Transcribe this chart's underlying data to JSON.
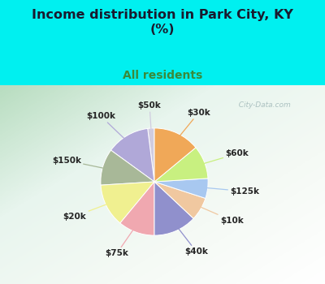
{
  "title": "Income distribution in Park City, KY\n(%)",
  "subtitle": "All residents",
  "labels": [
    "$50k",
    "$100k",
    "$150k",
    "$20k",
    "$75k",
    "$40k",
    "$10k",
    "$125k",
    "$60k",
    "$30k"
  ],
  "values": [
    2,
    13,
    11,
    13,
    11,
    13,
    7,
    6,
    10,
    14
  ],
  "colors": [
    "#d0cce0",
    "#b0a8d8",
    "#a8b898",
    "#f0f090",
    "#f0a8b0",
    "#9090cc",
    "#f0c8a0",
    "#a8c8f0",
    "#c8f080",
    "#f0a858"
  ],
  "background_color": "#00f0f0",
  "title_color": "#1a1a2e",
  "subtitle_color": "#3a8a3a",
  "label_color": "#252525",
  "label_fontsize": 7.5,
  "title_fontsize": 11.5,
  "subtitle_fontsize": 10,
  "watermark": "  City-Data.com",
  "watermark_color": "#a0b8b8"
}
